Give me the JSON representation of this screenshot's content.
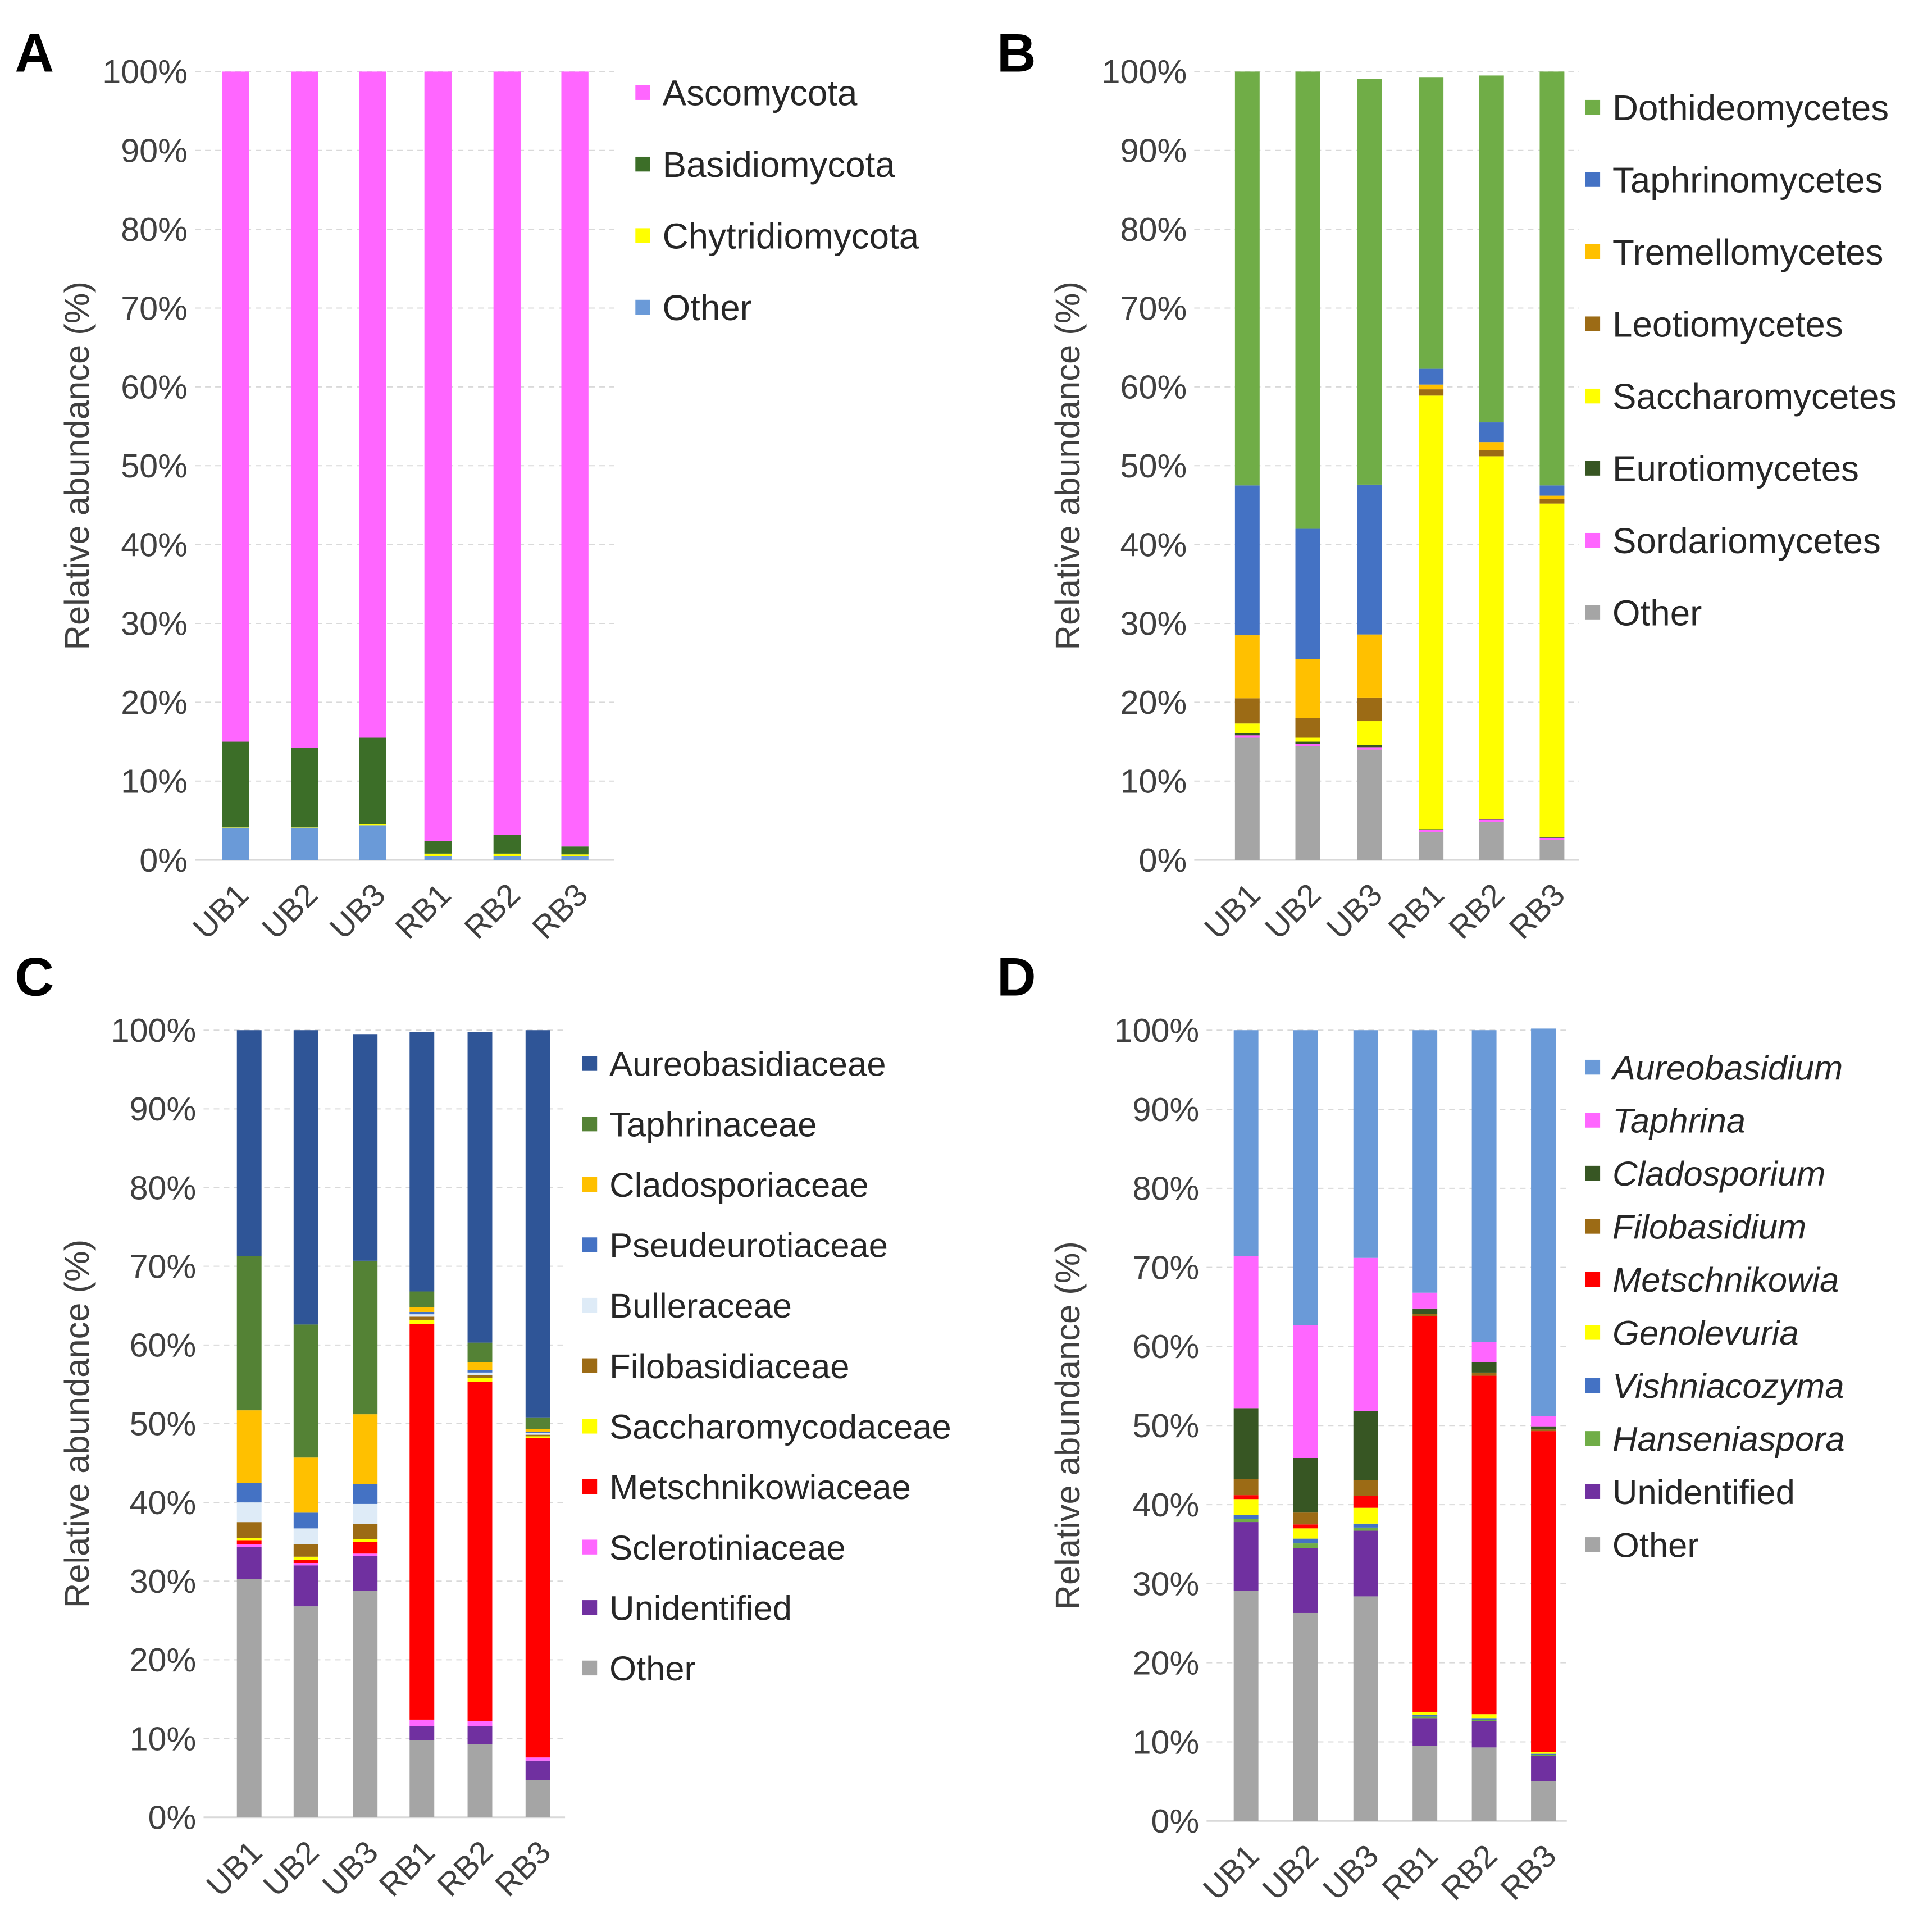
{
  "figure": {
    "panel_letters": [
      "A",
      "B",
      "C",
      "D"
    ],
    "categories": [
      "UB1",
      "UB2",
      "UB3",
      "RB1",
      "RB2",
      "RB3"
    ],
    "ylabel": "Relative abundance (%)",
    "ytick_labels": [
      "0%",
      "10%",
      "20%",
      "30%",
      "40%",
      "50%",
      "60%",
      "70%",
      "80%",
      "90%",
      "100%"
    ]
  },
  "chart_data": [
    {
      "panel": "A",
      "type": "bar",
      "stacked": true,
      "categories": [
        "UB1",
        "UB2",
        "UB3",
        "RB1",
        "RB2",
        "RB3"
      ],
      "ylabel": "Relative abundance (%)",
      "ylim": [
        0,
        100
      ],
      "legend_position": "right",
      "series": [
        {
          "name": "Ascomycota",
          "color": "#ff66ff",
          "italic": false,
          "values": [
            85.0,
            85.8,
            84.5,
            97.6,
            96.8,
            98.3
          ]
        },
        {
          "name": "Basidiomycota",
          "color": "#3c6e28",
          "italic": false,
          "values": [
            10.8,
            10.0,
            11.0,
            1.6,
            2.4,
            1.0
          ]
        },
        {
          "name": "Chytridiomycota",
          "color": "#ffff00",
          "italic": false,
          "values": [
            0.1,
            0.1,
            0.1,
            0.3,
            0.3,
            0.2
          ]
        },
        {
          "name": "Other",
          "color": "#6a9ad8",
          "italic": false,
          "values": [
            4.1,
            4.1,
            4.4,
            0.5,
            0.5,
            0.5
          ]
        }
      ]
    },
    {
      "panel": "B",
      "type": "bar",
      "stacked": true,
      "categories": [
        "UB1",
        "UB2",
        "UB3",
        "RB1",
        "RB2",
        "RB3"
      ],
      "ylabel": "Relative abundance (%)",
      "ylim": [
        0,
        100
      ],
      "legend_position": "right",
      "series": [
        {
          "name": "Dothideomycetes",
          "color": "#70ad47",
          "italic": false,
          "values": [
            52.5,
            58.0,
            51.5,
            37.0,
            44.0,
            52.5
          ]
        },
        {
          "name": "Taphrinomycetes",
          "color": "#4472c4",
          "italic": false,
          "values": [
            19.0,
            16.5,
            19.0,
            2.0,
            2.5,
            1.3
          ]
        },
        {
          "name": "Tremellomycetes",
          "color": "#ffc000",
          "italic": false,
          "values": [
            8.0,
            7.5,
            8.0,
            0.6,
            1.0,
            0.4
          ]
        },
        {
          "name": "Leotiomycetes",
          "color": "#9c6b15",
          "italic": false,
          "values": [
            3.2,
            2.5,
            3.0,
            0.8,
            0.8,
            0.6
          ]
        },
        {
          "name": "Saccharomycetes",
          "color": "#ffff00",
          "italic": false,
          "values": [
            1.2,
            0.5,
            3.0,
            55.0,
            46.0,
            42.3
          ]
        },
        {
          "name": "Eurotiomycetes",
          "color": "#375623",
          "italic": false,
          "values": [
            0.3,
            0.3,
            0.3,
            0.1,
            0.1,
            0.1
          ]
        },
        {
          "name": "Sordariomycetes",
          "color": "#ff66ff",
          "italic": false,
          "values": [
            0.3,
            0.3,
            0.3,
            0.3,
            0.3,
            0.3
          ]
        },
        {
          "name": "Other",
          "color": "#a5a5a5",
          "italic": false,
          "values": [
            15.5,
            14.4,
            14.0,
            3.5,
            4.8,
            2.5
          ]
        }
      ]
    },
    {
      "panel": "C",
      "type": "bar",
      "stacked": true,
      "categories": [
        "UB1",
        "UB2",
        "UB3",
        "RB1",
        "RB2",
        "RB3"
      ],
      "ylabel": "Relative abundance (%)",
      "ylim": [
        0,
        100
      ],
      "legend_position": "right",
      "series": [
        {
          "name": "Aureobasidiaceae",
          "color": "#2f5597",
          "italic": false,
          "values": [
            28.7,
            37.4,
            28.8,
            33.0,
            39.5,
            49.2
          ]
        },
        {
          "name": "Taphrinaceae",
          "color": "#548235",
          "italic": false,
          "values": [
            19.6,
            16.9,
            19.5,
            2.0,
            2.5,
            1.5
          ]
        },
        {
          "name": "Cladosporiaceae",
          "color": "#ffc000",
          "italic": false,
          "values": [
            9.2,
            7.0,
            8.9,
            0.6,
            1.0,
            0.3
          ]
        },
        {
          "name": "Pseudeurotiaceae",
          "color": "#4472c4",
          "italic": false,
          "values": [
            2.5,
            2.0,
            2.5,
            0.3,
            0.3,
            0.2
          ]
        },
        {
          "name": "Bulleraceae",
          "color": "#deebf7",
          "italic": false,
          "values": [
            2.5,
            2.0,
            2.5,
            0.3,
            0.3,
            0.2
          ]
        },
        {
          "name": "Filobasidiaceae",
          "color": "#9c6b15",
          "italic": false,
          "values": [
            2.0,
            1.6,
            2.0,
            0.4,
            0.4,
            0.2
          ]
        },
        {
          "name": "Saccharomycodaceae",
          "color": "#ffff00",
          "italic": false,
          "values": [
            0.3,
            0.4,
            0.3,
            0.5,
            0.5,
            0.2
          ]
        },
        {
          "name": "Metschnikowiaceae",
          "color": "#ff0000",
          "italic": false,
          "values": [
            0.5,
            0.4,
            1.5,
            50.3,
            43.1,
            40.6
          ]
        },
        {
          "name": "Sclerotiniaceae",
          "color": "#ff66ff",
          "italic": false,
          "values": [
            0.4,
            0.3,
            0.3,
            0.8,
            0.6,
            0.4
          ]
        },
        {
          "name": "Unidentified",
          "color": "#7030a0",
          "italic": false,
          "values": [
            4.0,
            5.2,
            4.4,
            1.8,
            2.3,
            2.5
          ]
        },
        {
          "name": "Other",
          "color": "#a5a5a5",
          "italic": false,
          "values": [
            30.3,
            26.8,
            28.8,
            9.8,
            9.3,
            4.7
          ]
        }
      ]
    },
    {
      "panel": "D",
      "type": "bar",
      "stacked": true,
      "categories": [
        "UB1",
        "UB2",
        "UB3",
        "RB1",
        "RB2",
        "RB3"
      ],
      "ylabel": "Relative abundance (%)",
      "ylim": [
        0,
        100
      ],
      "legend_position": "right",
      "series": [
        {
          "name": "Aureobasidium",
          "color": "#6a9ad8",
          "italic": true,
          "values": [
            28.6,
            37.3,
            28.8,
            33.2,
            39.4,
            49.0
          ]
        },
        {
          "name": "Taphrina",
          "color": "#ff66ff",
          "italic": true,
          "values": [
            19.2,
            16.8,
            19.4,
            2.0,
            2.6,
            1.3
          ]
        },
        {
          "name": "Cladosporium",
          "color": "#375623",
          "italic": true,
          "values": [
            9.0,
            6.9,
            8.7,
            0.7,
            1.3,
            0.4
          ]
        },
        {
          "name": "Filobasidium",
          "color": "#9c6b15",
          "italic": true,
          "values": [
            2.0,
            1.5,
            2.0,
            0.3,
            0.4,
            0.2
          ]
        },
        {
          "name": "Metschnikowia",
          "color": "#ff0000",
          "italic": true,
          "values": [
            0.5,
            0.5,
            1.5,
            50.0,
            42.8,
            40.6
          ]
        },
        {
          "name": "Genolevuria",
          "color": "#ffff00",
          "italic": true,
          "values": [
            2.0,
            1.3,
            2.0,
            0.4,
            0.5,
            0.2
          ]
        },
        {
          "name": "Vishniacozyma",
          "color": "#4472c4",
          "italic": true,
          "values": [
            0.5,
            0.6,
            0.5,
            0.2,
            0.2,
            0.1
          ]
        },
        {
          "name": "Hanseniaspora",
          "color": "#70ad47",
          "italic": true,
          "values": [
            0.4,
            0.6,
            0.4,
            0.2,
            0.2,
            0.2
          ]
        },
        {
          "name": "Unidentified",
          "color": "#7030a0",
          "italic": false,
          "values": [
            8.7,
            8.2,
            8.3,
            3.5,
            3.3,
            3.2
          ]
        },
        {
          "name": "Other",
          "color": "#a5a5a5",
          "italic": false,
          "values": [
            29.1,
            26.3,
            28.4,
            9.5,
            9.3,
            5.0
          ]
        }
      ]
    }
  ]
}
